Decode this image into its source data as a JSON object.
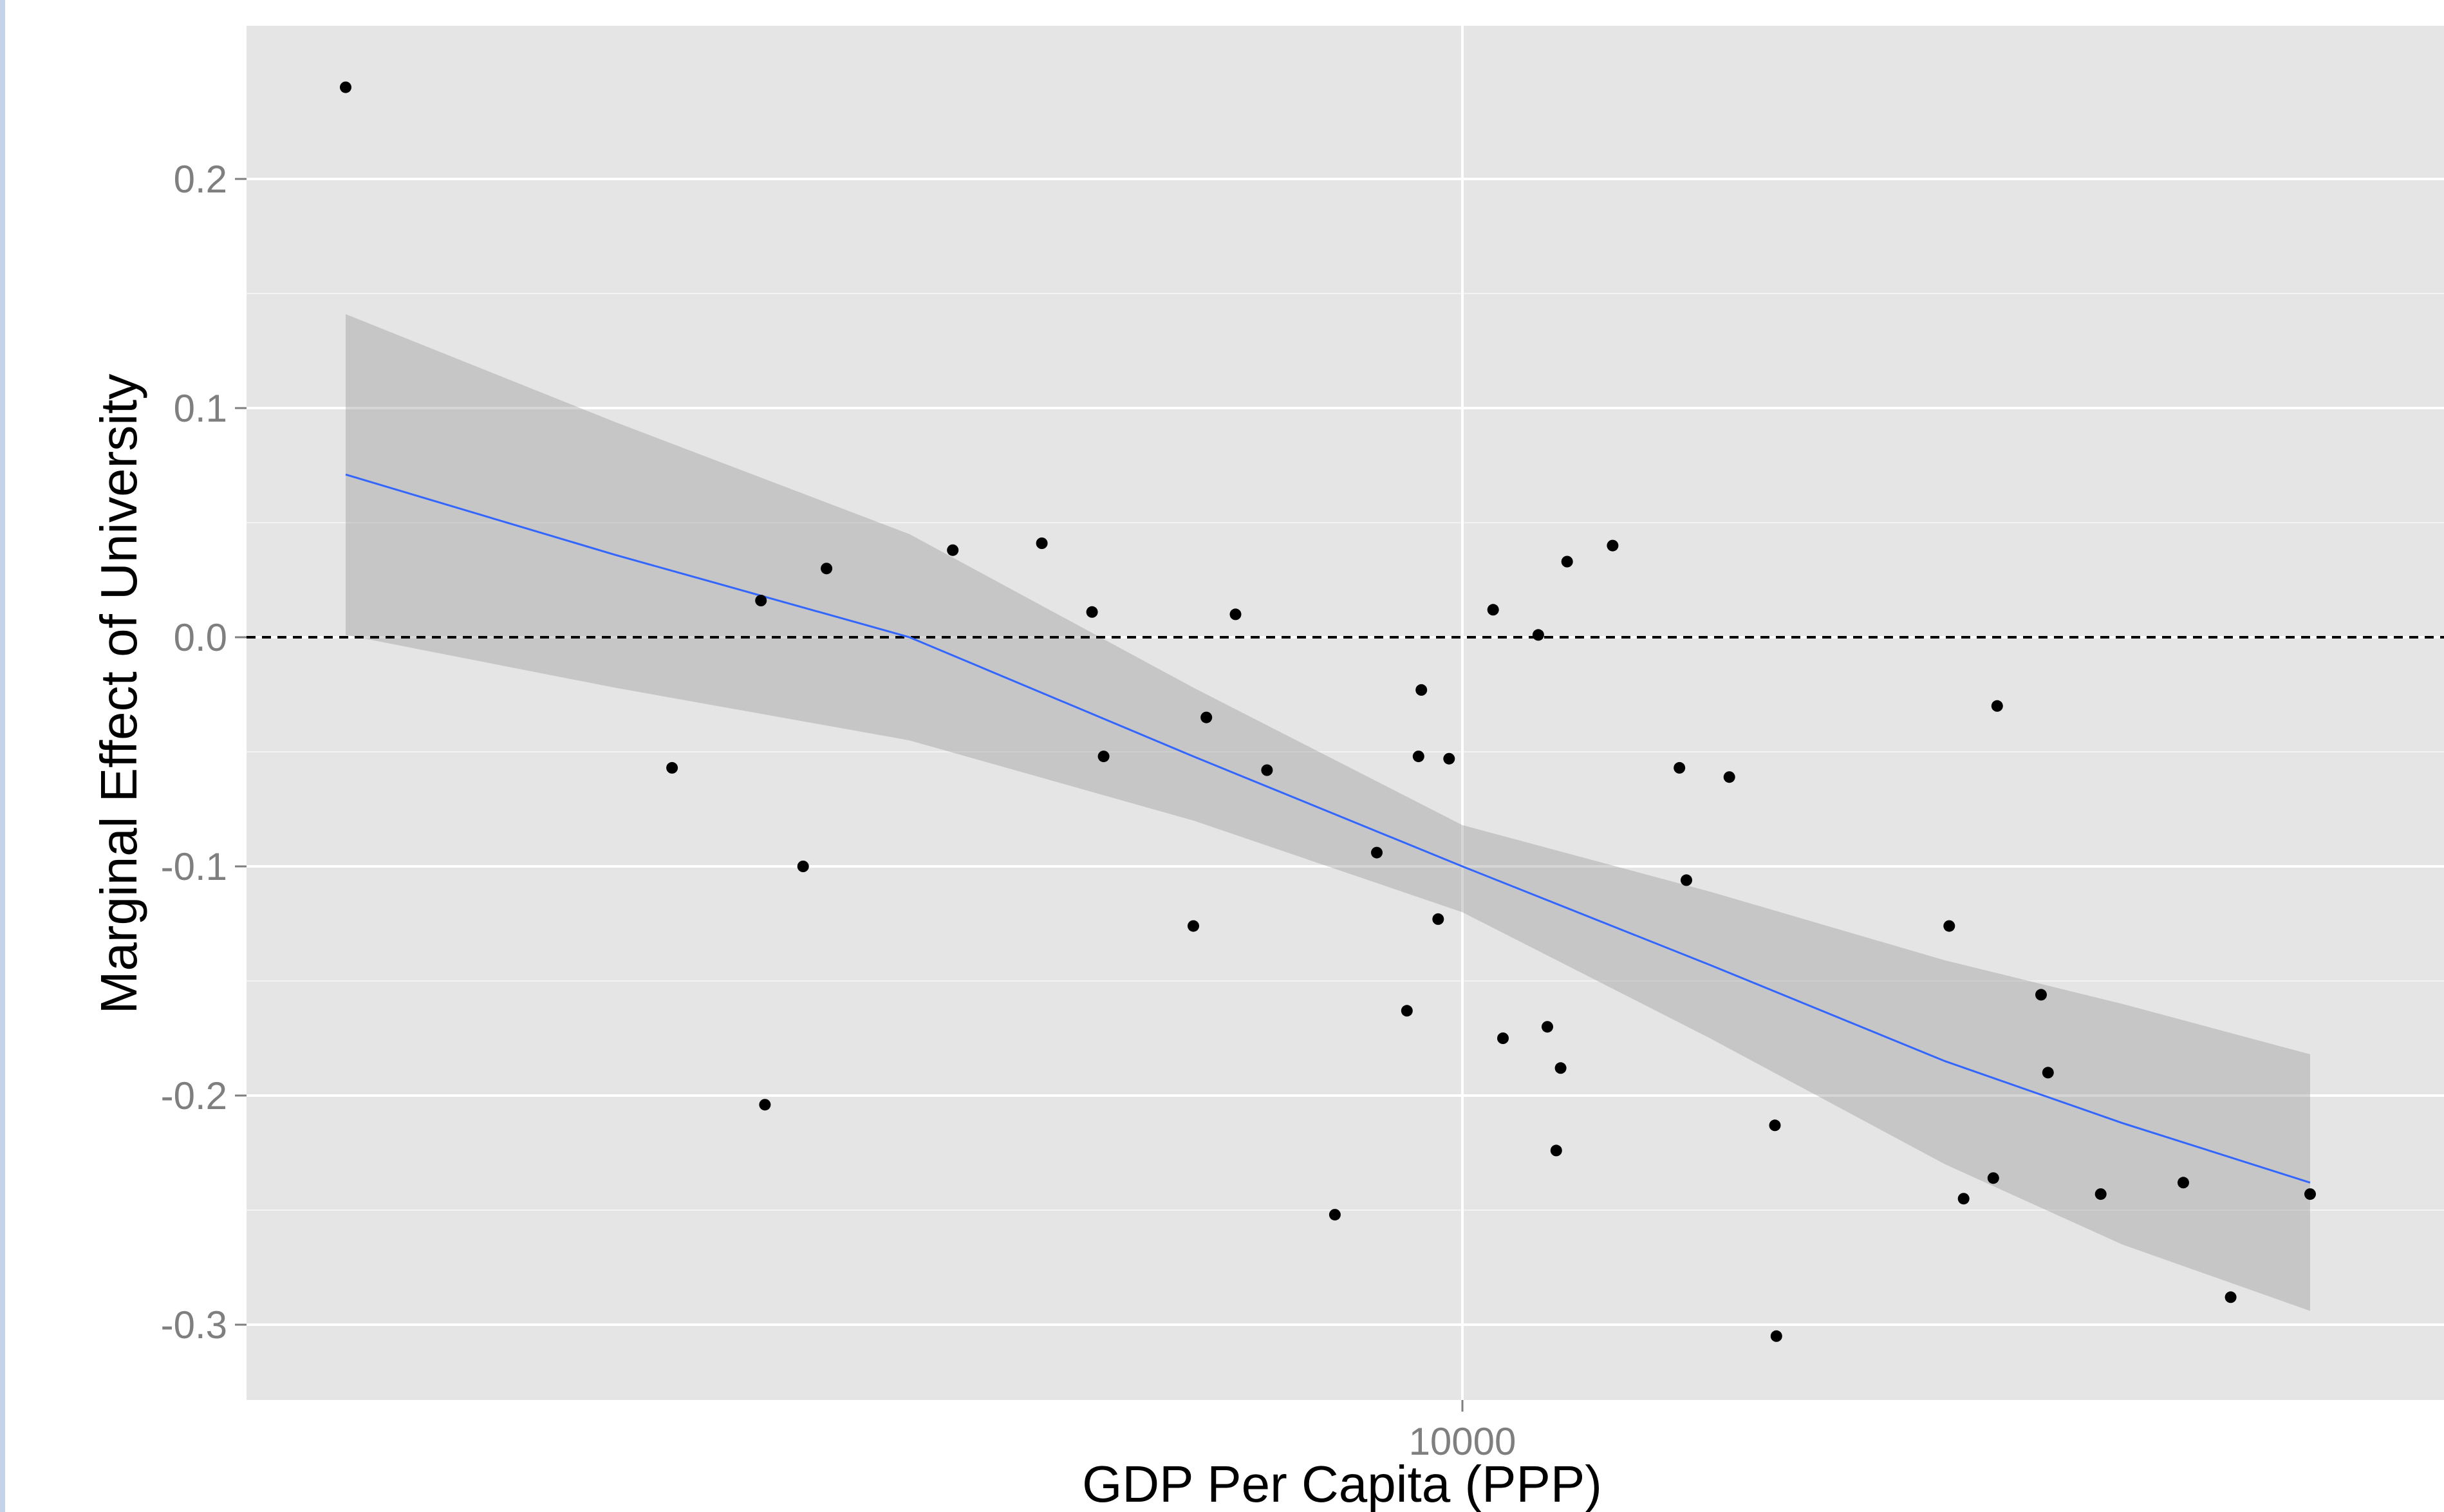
{
  "chart_data": {
    "type": "scatter",
    "title": "",
    "xlabel": "GDP Per Capita (PPP)",
    "ylabel": "Marginal Effect of University",
    "x_scale": "log",
    "xlim": [
      1000,
      50000
    ],
    "ylim": [
      -0.33,
      0.27
    ],
    "x_ticks": [
      {
        "value": 10000,
        "label": "10000"
      }
    ],
    "y_ticks": [
      {
        "value": 0.2,
        "label": "0.2"
      },
      {
        "value": 0.1,
        "label": "0.1"
      },
      {
        "value": 0.0,
        "label": "0.0"
      },
      {
        "value": -0.1,
        "label": "-0.1"
      },
      {
        "value": -0.2,
        "label": "-0.2"
      },
      {
        "value": -0.3,
        "label": "-0.3"
      }
    ],
    "y_minor_breaks": [
      0.15,
      0.05,
      -0.05,
      -0.15,
      -0.25
    ],
    "grid": true,
    "reference_line": {
      "y": 0,
      "style": "dashed",
      "color": "#000000"
    },
    "points": [
      {
        "x": 1200,
        "y": 0.24
      },
      {
        "x": 2230,
        "y": -0.057
      },
      {
        "x": 2640,
        "y": 0.016
      },
      {
        "x": 2660,
        "y": -0.204
      },
      {
        "x": 2860,
        "y": -0.1
      },
      {
        "x": 2990,
        "y": 0.03
      },
      {
        "x": 3800,
        "y": 0.038
      },
      {
        "x": 4500,
        "y": 0.041
      },
      {
        "x": 4950,
        "y": 0.011
      },
      {
        "x": 5060,
        "y": -0.052
      },
      {
        "x": 6000,
        "y": -0.126
      },
      {
        "x": 6150,
        "y": -0.035
      },
      {
        "x": 6500,
        "y": 0.01
      },
      {
        "x": 6900,
        "y": -0.058
      },
      {
        "x": 7850,
        "y": -0.252
      },
      {
        "x": 8500,
        "y": -0.094
      },
      {
        "x": 9000,
        "y": -0.163
      },
      {
        "x": 9200,
        "y": -0.052
      },
      {
        "x": 9250,
        "y": -0.023
      },
      {
        "x": 9550,
        "y": -0.123
      },
      {
        "x": 9750,
        "y": -0.053
      },
      {
        "x": 10600,
        "y": 0.012
      },
      {
        "x": 10800,
        "y": -0.175
      },
      {
        "x": 11550,
        "y": 0.001
      },
      {
        "x": 11750,
        "y": -0.17
      },
      {
        "x": 11950,
        "y": -0.224
      },
      {
        "x": 12050,
        "y": -0.188
      },
      {
        "x": 12200,
        "y": 0.033
      },
      {
        "x": 13300,
        "y": 0.04
      },
      {
        "x": 15100,
        "y": -0.057
      },
      {
        "x": 15300,
        "y": -0.106
      },
      {
        "x": 16600,
        "y": -0.061
      },
      {
        "x": 18100,
        "y": -0.213
      },
      {
        "x": 18150,
        "y": -0.305
      },
      {
        "x": 25200,
        "y": -0.126
      },
      {
        "x": 25900,
        "y": -0.245
      },
      {
        "x": 27400,
        "y": -0.236
      },
      {
        "x": 27600,
        "y": -0.03
      },
      {
        "x": 30000,
        "y": -0.156
      },
      {
        "x": 30400,
        "y": -0.19
      },
      {
        "x": 33600,
        "y": -0.243
      },
      {
        "x": 39300,
        "y": -0.238
      },
      {
        "x": 43000,
        "y": -0.288
      },
      {
        "x": 50000,
        "y": -0.243
      }
    ],
    "fit": {
      "method": "linear (log x)",
      "color": "#3366ff",
      "band_color": "#999999",
      "x": [
        1200,
        2000,
        3500,
        6000,
        10000,
        16000,
        25000,
        35000,
        50000
      ],
      "y": [
        0.071,
        0.036,
        0.0,
        -0.052,
        -0.1,
        -0.143,
        -0.185,
        -0.212,
        -0.238
      ],
      "ymin": [
        0.001,
        -0.022,
        -0.045,
        -0.08,
        -0.12,
        -0.175,
        -0.23,
        -0.265,
        -0.294
      ],
      "ymax": [
        0.141,
        0.094,
        0.045,
        -0.022,
        -0.082,
        -0.111,
        -0.141,
        -0.16,
        -0.182
      ]
    },
    "panel_background": "#e5e5e5",
    "grid_color": "#ffffff",
    "point_color": "#000000"
  }
}
